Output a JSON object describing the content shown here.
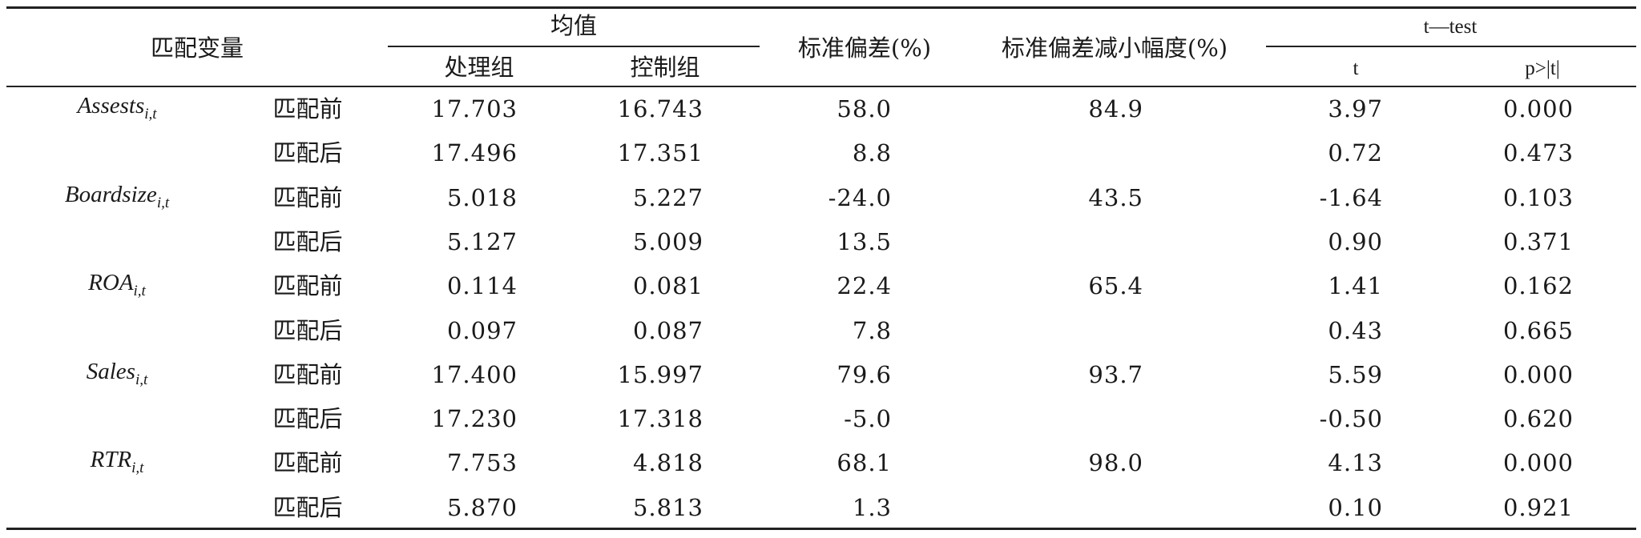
{
  "table": {
    "headers": {
      "matching_variable": "匹配变量",
      "mean": "均值",
      "treatment": "处理组",
      "control": "控制组",
      "std_bias": "标准偏差(%)",
      "std_bias_reduction": "标准偏差减小幅度(%)",
      "ttest": "t—test",
      "t": "t",
      "p": "p>|t|"
    },
    "rows": [
      {
        "var": "Assests",
        "sub": "i,t",
        "stage": "匹配前",
        "treat": "17.703",
        "control": "16.743",
        "bias": "58.0",
        "reduction": "84.9",
        "t": "3.97",
        "p": "0.000"
      },
      {
        "var": "",
        "sub": "",
        "stage": "匹配后",
        "treat": "17.496",
        "control": "17.351",
        "bias": "8.8",
        "reduction": "",
        "t": "0.72",
        "p": "0.473"
      },
      {
        "var": "Boardsize",
        "sub": "i,t",
        "stage": "匹配前",
        "treat": "5.018",
        "control": "5.227",
        "bias": "-24.0",
        "reduction": "43.5",
        "t": "-1.64",
        "p": "0.103"
      },
      {
        "var": "",
        "sub": "",
        "stage": "匹配后",
        "treat": "5.127",
        "control": "5.009",
        "bias": "13.5",
        "reduction": "",
        "t": "0.90",
        "p": "0.371"
      },
      {
        "var": "ROA",
        "sub": "i,t",
        "stage": "匹配前",
        "treat": "0.114",
        "control": "0.081",
        "bias": "22.4",
        "reduction": "65.4",
        "t": "1.41",
        "p": "0.162"
      },
      {
        "var": "",
        "sub": "",
        "stage": "匹配后",
        "treat": "0.097",
        "control": "0.087",
        "bias": "7.8",
        "reduction": "",
        "t": "0.43",
        "p": "0.665"
      },
      {
        "var": "Sales",
        "sub": "i,t",
        "stage": "匹配前",
        "treat": "17.400",
        "control": "15.997",
        "bias": "79.6",
        "reduction": "93.7",
        "t": "5.59",
        "p": "0.000"
      },
      {
        "var": "",
        "sub": "",
        "stage": "匹配后",
        "treat": "17.230",
        "control": "17.318",
        "bias": "-5.0",
        "reduction": "",
        "t": "-0.50",
        "p": "0.620"
      },
      {
        "var": "RTR",
        "sub": "i,t",
        "stage": "匹配前",
        "treat": "7.753",
        "control": "4.818",
        "bias": "68.1",
        "reduction": "98.0",
        "t": "4.13",
        "p": "0.000"
      },
      {
        "var": "",
        "sub": "",
        "stage": "匹配后",
        "treat": "5.870",
        "control": "5.813",
        "bias": "1.3",
        "reduction": "",
        "t": "0.10",
        "p": "0.921"
      }
    ]
  }
}
